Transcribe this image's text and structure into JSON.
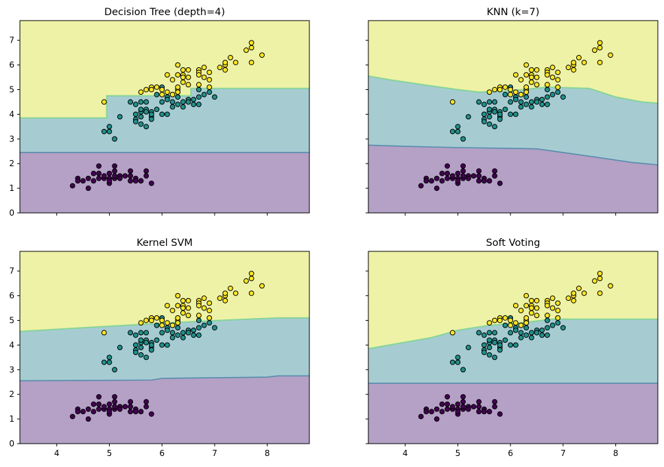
{
  "figure": {
    "colors": {
      "class0_region": "#b4a1c5",
      "class1_region": "#a6ccd2",
      "class2_region": "#eef2a6",
      "boundary_01": "#4c86a8",
      "boundary_12": "#7fd395",
      "class0_point": "#440154",
      "class1_point": "#21918c",
      "class2_point": "#fde725",
      "point_edge": "#000000"
    }
  },
  "chart_data": [
    {
      "type": "scatter",
      "title": "Decision Tree (depth=4)",
      "xlim": [
        3.3,
        8.8
      ],
      "ylim": [
        0,
        7.8
      ],
      "xticks": [
        "4",
        "5",
        "6",
        "7",
        "8"
      ],
      "yticks": [
        "0",
        "1",
        "2",
        "3",
        "4",
        "5",
        "6",
        "7"
      ],
      "show_xtick_labels": false,
      "show_ytick_labels": true,
      "boundary_01": [
        [
          3.3,
          2.45
        ],
        [
          8.8,
          2.45
        ]
      ],
      "boundary_12": [
        [
          3.3,
          3.85
        ],
        [
          4.95,
          3.85
        ],
        [
          4.95,
          4.75
        ],
        [
          6.55,
          4.75
        ],
        [
          6.55,
          5.05
        ],
        [
          8.8,
          5.05
        ]
      ]
    },
    {
      "type": "scatter",
      "title": "KNN (k=7)",
      "xlim": [
        3.3,
        8.8
      ],
      "ylim": [
        0,
        7.8
      ],
      "xticks": [
        "4",
        "5",
        "6",
        "7",
        "8"
      ],
      "yticks": [
        "0",
        "1",
        "2",
        "3",
        "4",
        "5",
        "6",
        "7"
      ],
      "show_xtick_labels": false,
      "show_ytick_labels": false,
      "boundary_01": [
        [
          3.3,
          2.75
        ],
        [
          4.0,
          2.7
        ],
        [
          5.0,
          2.65
        ],
        [
          6.5,
          2.6
        ],
        [
          7.5,
          2.3
        ],
        [
          8.3,
          2.05
        ],
        [
          8.8,
          1.95
        ]
      ],
      "boundary_12": [
        [
          3.3,
          5.55
        ],
        [
          3.7,
          5.4
        ],
        [
          4.5,
          5.15
        ],
        [
          5.0,
          5.0
        ],
        [
          5.4,
          4.9
        ],
        [
          6.0,
          4.95
        ],
        [
          6.7,
          5.1
        ],
        [
          7.5,
          5.05
        ],
        [
          8.0,
          4.7
        ],
        [
          8.5,
          4.5
        ],
        [
          8.8,
          4.45
        ]
      ]
    },
    {
      "type": "scatter",
      "title": "Kernel SVM",
      "xlim": [
        3.3,
        8.8
      ],
      "ylim": [
        0,
        7.8
      ],
      "xticks": [
        "4",
        "5",
        "6",
        "7",
        "8"
      ],
      "yticks": [
        "0",
        "1",
        "2",
        "3",
        "4",
        "5",
        "6",
        "7"
      ],
      "show_xtick_labels": true,
      "show_ytick_labels": true,
      "boundary_01": [
        [
          3.3,
          2.55
        ],
        [
          5.8,
          2.58
        ],
        [
          6.0,
          2.65
        ],
        [
          8.0,
          2.7
        ],
        [
          8.2,
          2.75
        ],
        [
          8.8,
          2.75
        ]
      ],
      "boundary_12": [
        [
          3.3,
          4.55
        ],
        [
          3.7,
          4.6
        ],
        [
          4.5,
          4.7
        ],
        [
          5.3,
          4.8
        ],
        [
          6.1,
          4.9
        ],
        [
          7.1,
          5.0
        ],
        [
          8.2,
          5.1
        ],
        [
          8.8,
          5.1
        ]
      ]
    },
    {
      "type": "scatter",
      "title": "Soft Voting",
      "xlim": [
        3.3,
        8.8
      ],
      "ylim": [
        0,
        7.8
      ],
      "xticks": [
        "4",
        "5",
        "6",
        "7",
        "8"
      ],
      "yticks": [
        "0",
        "1",
        "2",
        "3",
        "4",
        "5",
        "6",
        "7"
      ],
      "show_xtick_labels": true,
      "show_ytick_labels": false,
      "boundary_01": [
        [
          3.3,
          2.45
        ],
        [
          8.8,
          2.45
        ]
      ],
      "boundary_12": [
        [
          3.3,
          3.85
        ],
        [
          3.7,
          4.0
        ],
        [
          4.5,
          4.3
        ],
        [
          5.0,
          4.6
        ],
        [
          5.6,
          4.8
        ],
        [
          6.2,
          4.9
        ],
        [
          6.8,
          5.05
        ],
        [
          8.8,
          5.05
        ]
      ]
    }
  ],
  "points": [
    {
      "x": 4.3,
      "y": 1.1,
      "c": 0
    },
    {
      "x": 4.4,
      "y": 1.4,
      "c": 0
    },
    {
      "x": 4.4,
      "y": 1.3,
      "c": 0
    },
    {
      "x": 4.5,
      "y": 1.3,
      "c": 0
    },
    {
      "x": 4.6,
      "y": 1.0,
      "c": 0
    },
    {
      "x": 4.6,
      "y": 1.4,
      "c": 0
    },
    {
      "x": 4.7,
      "y": 1.3,
      "c": 0
    },
    {
      "x": 4.7,
      "y": 1.6,
      "c": 0
    },
    {
      "x": 4.8,
      "y": 1.4,
      "c": 0
    },
    {
      "x": 4.8,
      "y": 1.6,
      "c": 0
    },
    {
      "x": 4.8,
      "y": 1.9,
      "c": 0
    },
    {
      "x": 4.9,
      "y": 1.4,
      "c": 0
    },
    {
      "x": 4.9,
      "y": 1.5,
      "c": 0
    },
    {
      "x": 5.0,
      "y": 1.2,
      "c": 0
    },
    {
      "x": 5.0,
      "y": 1.4,
      "c": 0
    },
    {
      "x": 5.0,
      "y": 1.6,
      "c": 0
    },
    {
      "x": 5.0,
      "y": 1.3,
      "c": 0
    },
    {
      "x": 5.1,
      "y": 1.4,
      "c": 0
    },
    {
      "x": 5.1,
      "y": 1.5,
      "c": 0
    },
    {
      "x": 5.1,
      "y": 1.7,
      "c": 0
    },
    {
      "x": 5.1,
      "y": 1.9,
      "c": 0
    },
    {
      "x": 5.2,
      "y": 1.5,
      "c": 0
    },
    {
      "x": 5.2,
      "y": 1.4,
      "c": 0
    },
    {
      "x": 5.3,
      "y": 1.5,
      "c": 0
    },
    {
      "x": 5.4,
      "y": 1.3,
      "c": 0
    },
    {
      "x": 5.4,
      "y": 1.5,
      "c": 0
    },
    {
      "x": 5.4,
      "y": 1.7,
      "c": 0
    },
    {
      "x": 5.5,
      "y": 1.4,
      "c": 0
    },
    {
      "x": 5.5,
      "y": 1.3,
      "c": 0
    },
    {
      "x": 5.7,
      "y": 1.5,
      "c": 0
    },
    {
      "x": 5.7,
      "y": 1.7,
      "c": 0
    },
    {
      "x": 5.8,
      "y": 1.2,
      "c": 0
    },
    {
      "x": 5.6,
      "y": 1.3,
      "c": 0
    },
    {
      "x": 4.9,
      "y": 3.3,
      "c": 1
    },
    {
      "x": 5.0,
      "y": 3.5,
      "c": 1
    },
    {
      "x": 5.0,
      "y": 3.3,
      "c": 1
    },
    {
      "x": 5.1,
      "y": 3.0,
      "c": 1
    },
    {
      "x": 5.2,
      "y": 3.9,
      "c": 1
    },
    {
      "x": 5.4,
      "y": 4.5,
      "c": 1
    },
    {
      "x": 5.5,
      "y": 4.0,
      "c": 1
    },
    {
      "x": 5.5,
      "y": 3.8,
      "c": 1
    },
    {
      "x": 5.5,
      "y": 3.7,
      "c": 1
    },
    {
      "x": 5.5,
      "y": 4.4,
      "c": 1
    },
    {
      "x": 5.6,
      "y": 4.5,
      "c": 1
    },
    {
      "x": 5.6,
      "y": 3.6,
      "c": 1
    },
    {
      "x": 5.6,
      "y": 3.9,
      "c": 1
    },
    {
      "x": 5.6,
      "y": 4.1,
      "c": 1
    },
    {
      "x": 5.6,
      "y": 4.2,
      "c": 1
    },
    {
      "x": 5.7,
      "y": 4.5,
      "c": 1
    },
    {
      "x": 5.7,
      "y": 3.5,
      "c": 1
    },
    {
      "x": 5.7,
      "y": 4.2,
      "c": 1
    },
    {
      "x": 5.7,
      "y": 4.1,
      "c": 1
    },
    {
      "x": 5.8,
      "y": 4.1,
      "c": 1
    },
    {
      "x": 5.8,
      "y": 3.9,
      "c": 1
    },
    {
      "x": 5.8,
      "y": 4.0,
      "c": 1
    },
    {
      "x": 5.9,
      "y": 4.8,
      "c": 1
    },
    {
      "x": 5.9,
      "y": 4.2,
      "c": 1
    },
    {
      "x": 6.0,
      "y": 4.5,
      "c": 1
    },
    {
      "x": 6.0,
      "y": 4.0,
      "c": 1
    },
    {
      "x": 6.0,
      "y": 5.1,
      "c": 1
    },
    {
      "x": 6.1,
      "y": 4.7,
      "c": 1
    },
    {
      "x": 6.1,
      "y": 4.0,
      "c": 1
    },
    {
      "x": 6.1,
      "y": 4.6,
      "c": 1
    },
    {
      "x": 6.2,
      "y": 4.3,
      "c": 1
    },
    {
      "x": 6.2,
      "y": 4.5,
      "c": 1
    },
    {
      "x": 6.3,
      "y": 4.7,
      "c": 1
    },
    {
      "x": 6.3,
      "y": 4.9,
      "c": 1
    },
    {
      "x": 6.3,
      "y": 4.4,
      "c": 1
    },
    {
      "x": 6.4,
      "y": 4.5,
      "c": 1
    },
    {
      "x": 6.4,
      "y": 4.3,
      "c": 1
    },
    {
      "x": 6.5,
      "y": 4.6,
      "c": 1
    },
    {
      "x": 6.6,
      "y": 4.6,
      "c": 1
    },
    {
      "x": 6.6,
      "y": 4.4,
      "c": 1
    },
    {
      "x": 6.7,
      "y": 4.7,
      "c": 1
    },
    {
      "x": 6.7,
      "y": 4.4,
      "c": 1
    },
    {
      "x": 6.7,
      "y": 5.0,
      "c": 1
    },
    {
      "x": 6.8,
      "y": 4.8,
      "c": 1
    },
    {
      "x": 6.9,
      "y": 4.9,
      "c": 1
    },
    {
      "x": 7.0,
      "y": 4.7,
      "c": 1
    },
    {
      "x": 6.5,
      "y": 4.5,
      "c": 1
    },
    {
      "x": 5.8,
      "y": 3.8,
      "c": 1
    },
    {
      "x": 6.2,
      "y": 4.8,
      "c": 1
    },
    {
      "x": 4.9,
      "y": 4.5,
      "c": 2
    },
    {
      "x": 5.6,
      "y": 4.9,
      "c": 2
    },
    {
      "x": 5.7,
      "y": 5.0,
      "c": 2
    },
    {
      "x": 5.8,
      "y": 5.1,
      "c": 2
    },
    {
      "x": 5.8,
      "y": 5.0,
      "c": 2
    },
    {
      "x": 5.9,
      "y": 5.1,
      "c": 2
    },
    {
      "x": 6.0,
      "y": 4.8,
      "c": 2
    },
    {
      "x": 6.0,
      "y": 5.0,
      "c": 2
    },
    {
      "x": 6.1,
      "y": 5.6,
      "c": 2
    },
    {
      "x": 6.1,
      "y": 4.9,
      "c": 2
    },
    {
      "x": 6.2,
      "y": 5.4,
      "c": 2
    },
    {
      "x": 6.2,
      "y": 4.8,
      "c": 2
    },
    {
      "x": 6.3,
      "y": 6.0,
      "c": 2
    },
    {
      "x": 6.3,
      "y": 5.6,
      "c": 2
    },
    {
      "x": 6.3,
      "y": 5.0,
      "c": 2
    },
    {
      "x": 6.3,
      "y": 5.1,
      "c": 2
    },
    {
      "x": 6.3,
      "y": 4.9,
      "c": 2
    },
    {
      "x": 6.4,
      "y": 5.6,
      "c": 2
    },
    {
      "x": 6.4,
      "y": 5.5,
      "c": 2
    },
    {
      "x": 6.4,
      "y": 5.3,
      "c": 2
    },
    {
      "x": 6.4,
      "y": 5.8,
      "c": 2
    },
    {
      "x": 6.5,
      "y": 5.8,
      "c": 2
    },
    {
      "x": 6.5,
      "y": 5.5,
      "c": 2
    },
    {
      "x": 6.5,
      "y": 5.2,
      "c": 2
    },
    {
      "x": 6.7,
      "y": 5.8,
      "c": 2
    },
    {
      "x": 6.7,
      "y": 5.7,
      "c": 2
    },
    {
      "x": 6.7,
      "y": 5.6,
      "c": 2
    },
    {
      "x": 6.7,
      "y": 5.2,
      "c": 2
    },
    {
      "x": 6.8,
      "y": 5.9,
      "c": 2
    },
    {
      "x": 6.8,
      "y": 5.5,
      "c": 2
    },
    {
      "x": 6.9,
      "y": 5.7,
      "c": 2
    },
    {
      "x": 6.9,
      "y": 5.4,
      "c": 2
    },
    {
      "x": 6.9,
      "y": 5.1,
      "c": 2
    },
    {
      "x": 7.1,
      "y": 5.9,
      "c": 2
    },
    {
      "x": 7.2,
      "y": 6.0,
      "c": 2
    },
    {
      "x": 7.2,
      "y": 5.8,
      "c": 2
    },
    {
      "x": 7.2,
      "y": 6.1,
      "c": 2
    },
    {
      "x": 7.3,
      "y": 6.3,
      "c": 2
    },
    {
      "x": 7.4,
      "y": 6.1,
      "c": 2
    },
    {
      "x": 7.6,
      "y": 6.6,
      "c": 2
    },
    {
      "x": 7.7,
      "y": 6.7,
      "c": 2
    },
    {
      "x": 7.7,
      "y": 6.9,
      "c": 2
    },
    {
      "x": 7.7,
      "y": 6.1,
      "c": 2
    },
    {
      "x": 7.9,
      "y": 6.4,
      "c": 2
    }
  ]
}
